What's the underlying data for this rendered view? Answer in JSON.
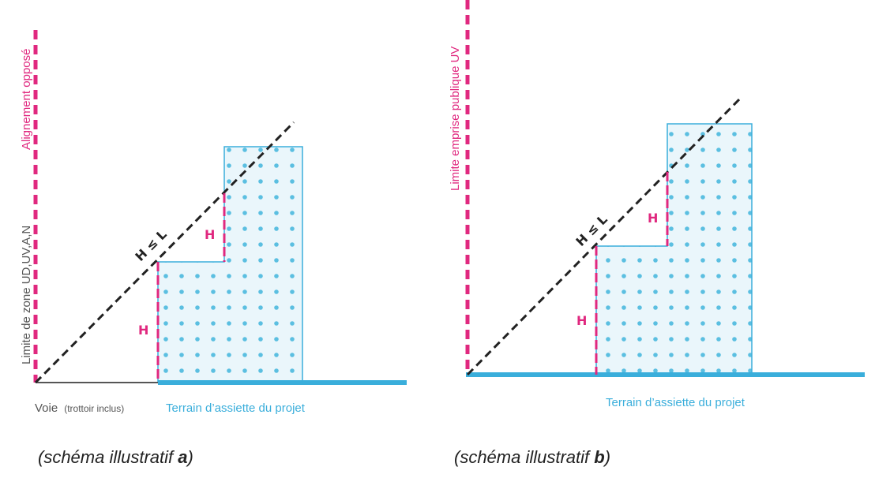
{
  "colors": {
    "magenta": "#e0287f",
    "blue": "#3aaedb",
    "dot": "#5bbfe1",
    "fill": "#eaf6fb",
    "black": "#222222",
    "gray": "#555555"
  },
  "diagram_a": {
    "boundary_top": "Alignement opposé",
    "boundary_bottom": "Limite de zone UD,UV,A,N",
    "ratio": "H ≤ L",
    "h_upper": "H",
    "h_lower": "H",
    "road_main": "Voie",
    "road_note": "(trottoir inclus)",
    "ground": "Terrain d’assiette du projet",
    "caption_prefix": "(schéma illustratif ",
    "caption_letter": "a",
    "caption_suffix": ")"
  },
  "diagram_b": {
    "boundary": "Limite emprise publique UV",
    "ratio": "H ≤ L",
    "h_upper": "H",
    "h_lower": "H",
    "ground": "Terrain d’assiette du projet",
    "caption_prefix": "(schéma illustratif ",
    "caption_letter": "b",
    "caption_suffix": ")"
  }
}
